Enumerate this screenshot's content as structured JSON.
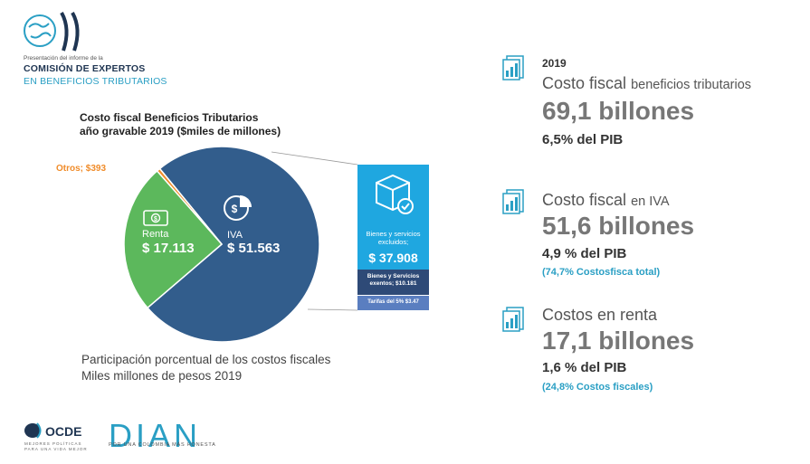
{
  "header": {
    "small": "Presentación del informe de la",
    "title": "COMISIÓN DE EXPERTOS",
    "subtitle": "EN BENEFICIOS TRIBUTARIOS"
  },
  "chart": {
    "title_line1": "Costo fiscal Beneficios Tributarios",
    "title_line2": "año gravable 2019 ($miles de millones)",
    "otros_label": "Otros; $393",
    "renta_label": "Renta",
    "renta_value": "$ 17.113",
    "iva_label": "IVA",
    "iva_value": "$ 51.563"
  },
  "chart_data": {
    "type": "pie",
    "title": "Costo fiscal Beneficios Tributarios año gravable 2019 ($miles de millones)",
    "slices": [
      {
        "name": "IVA",
        "value": 51563,
        "color": "#325d8c"
      },
      {
        "name": "Renta",
        "value": 17113,
        "color": "#5cb85c"
      },
      {
        "name": "Otros",
        "value": 393,
        "color": "#f08c2a"
      }
    ]
  },
  "box": {
    "excluded_label": "Bienes y servicios excluidos;",
    "excluded_value": "$ 37.908",
    "exempt_label": "Bienes y Servicios exentos; $10.181",
    "tarifas_label": "Tarifas del 5% $3.47"
  },
  "footer": {
    "line1": "Participación porcentual de los costos fiscales",
    "line2": "Miles millones de pesos 2019"
  },
  "right": {
    "year": "2019",
    "block1": {
      "title_main": "Costo fiscal",
      "title_small": "beneficios tributarios",
      "big": "69,1 billones",
      "pib": "6,5% del PIB"
    },
    "block2": {
      "title_main": "Costo fiscal",
      "title_small": "en IVA",
      "big": "51,6 billones",
      "pib": "4,9 % del PIB",
      "pct": "(74,7% Costosfisca total)"
    },
    "block3": {
      "title_main": "Costos en renta",
      "big": "17,1 billones",
      "pib": "1,6 % del PIB",
      "pct": "(24,8% Costos fiscales)"
    }
  },
  "logos": {
    "ocde": "OCDE",
    "ocde_sub1": "MEJORES POLÍTICAS",
    "ocde_sub2": "PARA UNA VIDA MEJOR",
    "dian": "DIAN",
    "dian_sub": "POR UNA COLOMBIA MÁS HONESTA"
  },
  "colors": {
    "iva": "#325d8c",
    "renta": "#5cb85c",
    "otros": "#f08c2a",
    "accent": "#2a9fc4",
    "box": "#1fa7e0"
  }
}
